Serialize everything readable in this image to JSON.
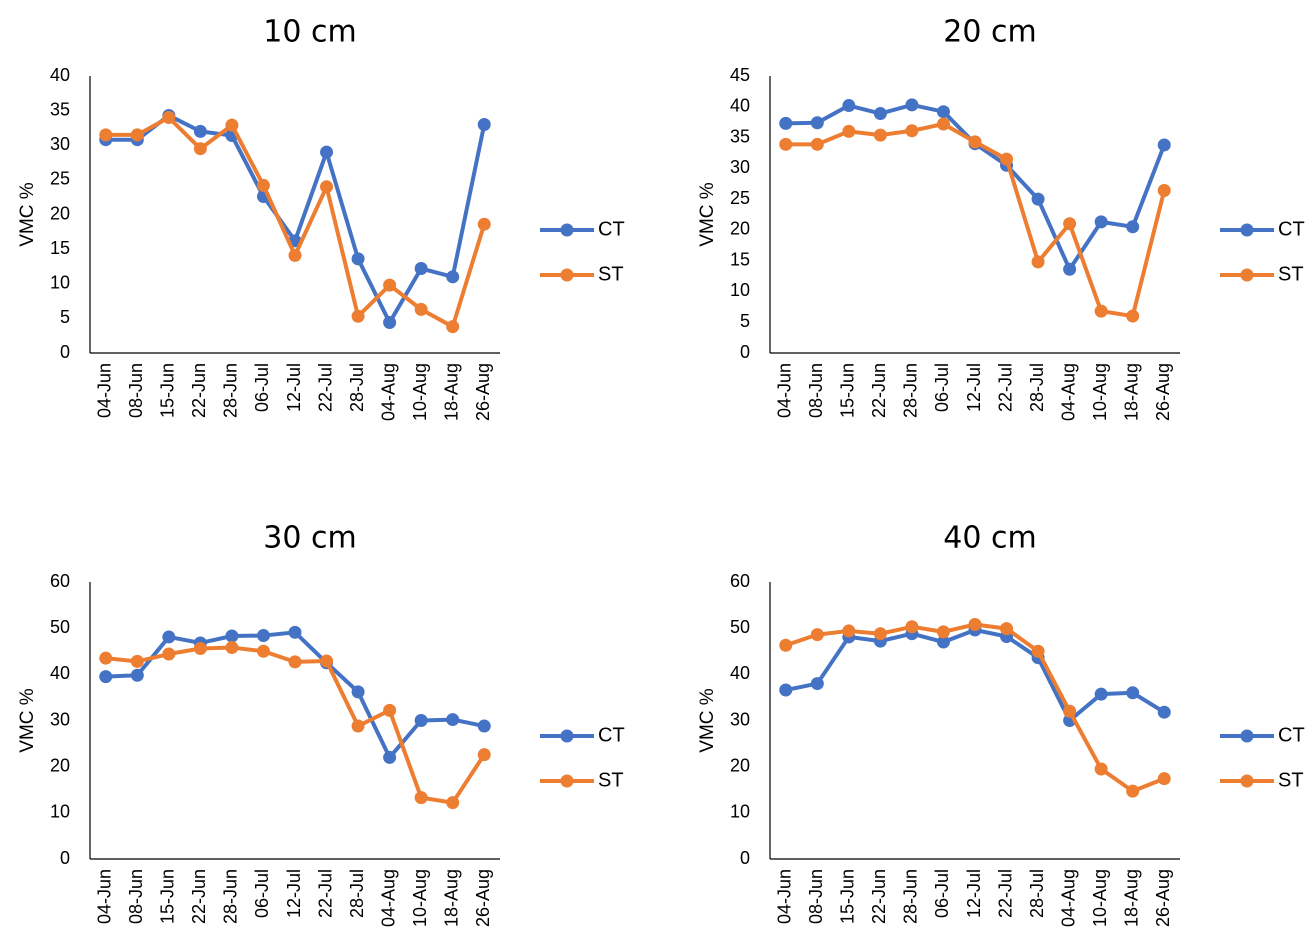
{
  "ylabel": "VMC %",
  "colors": {
    "CT": "#4472C4",
    "ST": "#ED7D31"
  },
  "chart_data": [
    {
      "type": "line",
      "title": "10 cm",
      "ylabel": "VMC %",
      "ylim": [
        0,
        40
      ],
      "ytick_step": 5,
      "categories": [
        "04-Jun",
        "08-Jun",
        "15-Jun",
        "22-Jun",
        "28-Jun",
        "06-Jul",
        "12-Jul",
        "22-Jul",
        "28-Jul",
        "04-Aug",
        "10-Aug",
        "18-Aug",
        "26-Aug"
      ],
      "series": [
        {
          "name": "CT",
          "values": [
            30.8,
            30.8,
            34.3,
            32.0,
            31.4,
            22.6,
            16.2,
            29.0,
            13.6,
            4.4,
            12.2,
            11.0,
            33.0
          ]
        },
        {
          "name": "ST",
          "values": [
            31.5,
            31.5,
            34.0,
            29.5,
            32.9,
            24.2,
            14.1,
            24.0,
            5.3,
            9.8,
            6.3,
            3.8,
            18.6
          ]
        }
      ],
      "legend": "right",
      "grid": false
    },
    {
      "type": "line",
      "title": "20 cm",
      "ylabel": "VMC %",
      "ylim": [
        0,
        45
      ],
      "ytick_step": 5,
      "categories": [
        "04-Jun",
        "08-Jun",
        "15-Jun",
        "22-Jun",
        "28-Jun",
        "06-Jul",
        "12-Jul",
        "22-Jul",
        "28-Jul",
        "04-Aug",
        "10-Aug",
        "18-Aug",
        "26-Aug"
      ],
      "series": [
        {
          "name": "CT",
          "values": [
            37.3,
            37.4,
            40.2,
            38.9,
            40.3,
            39.2,
            34.0,
            30.5,
            25.0,
            13.6,
            21.3,
            20.5,
            33.8
          ]
        },
        {
          "name": "ST",
          "values": [
            33.9,
            33.9,
            36.0,
            35.4,
            36.1,
            37.2,
            34.3,
            31.5,
            14.8,
            21.0,
            6.8,
            6.0,
            26.4
          ]
        }
      ],
      "legend": "right",
      "grid": false
    },
    {
      "type": "line",
      "title": "30 cm",
      "ylabel": "VMC %",
      "ylim": [
        0,
        60
      ],
      "ytick_step": 10,
      "categories": [
        "04-Jun",
        "08-Jun",
        "15-Jun",
        "22-Jun",
        "28-Jun",
        "06-Jul",
        "12-Jul",
        "22-Jul",
        "28-Jul",
        "04-Aug",
        "10-Aug",
        "18-Aug",
        "26-Aug"
      ],
      "series": [
        {
          "name": "CT",
          "values": [
            39.5,
            39.8,
            48.1,
            46.8,
            48.3,
            48.4,
            49.1,
            42.5,
            36.2,
            22.0,
            30.0,
            30.2,
            28.8
          ]
        },
        {
          "name": "ST",
          "values": [
            43.5,
            42.8,
            44.4,
            45.6,
            45.8,
            45.0,
            42.7,
            42.9,
            28.8,
            32.2,
            13.3,
            12.2,
            22.6
          ]
        }
      ],
      "legend": "right",
      "grid": false
    },
    {
      "type": "line",
      "title": "40 cm",
      "ylabel": "VMC %",
      "ylim": [
        0,
        60
      ],
      "ytick_step": 10,
      "categories": [
        "04-Jun",
        "08-Jun",
        "15-Jun",
        "22-Jun",
        "28-Jun",
        "06-Jul",
        "12-Jul",
        "22-Jul",
        "28-Jul",
        "04-Aug",
        "10-Aug",
        "18-Aug",
        "26-Aug"
      ],
      "series": [
        {
          "name": "CT",
          "values": [
            36.6,
            38.0,
            48.1,
            47.2,
            48.8,
            47.0,
            49.6,
            48.2,
            43.6,
            30.0,
            35.7,
            36.0,
            31.8
          ]
        },
        {
          "name": "ST",
          "values": [
            46.3,
            48.6,
            49.4,
            48.8,
            50.3,
            49.2,
            50.8,
            49.9,
            45.0,
            32.0,
            19.5,
            14.7,
            17.4
          ]
        }
      ],
      "legend": "right",
      "grid": false
    }
  ]
}
